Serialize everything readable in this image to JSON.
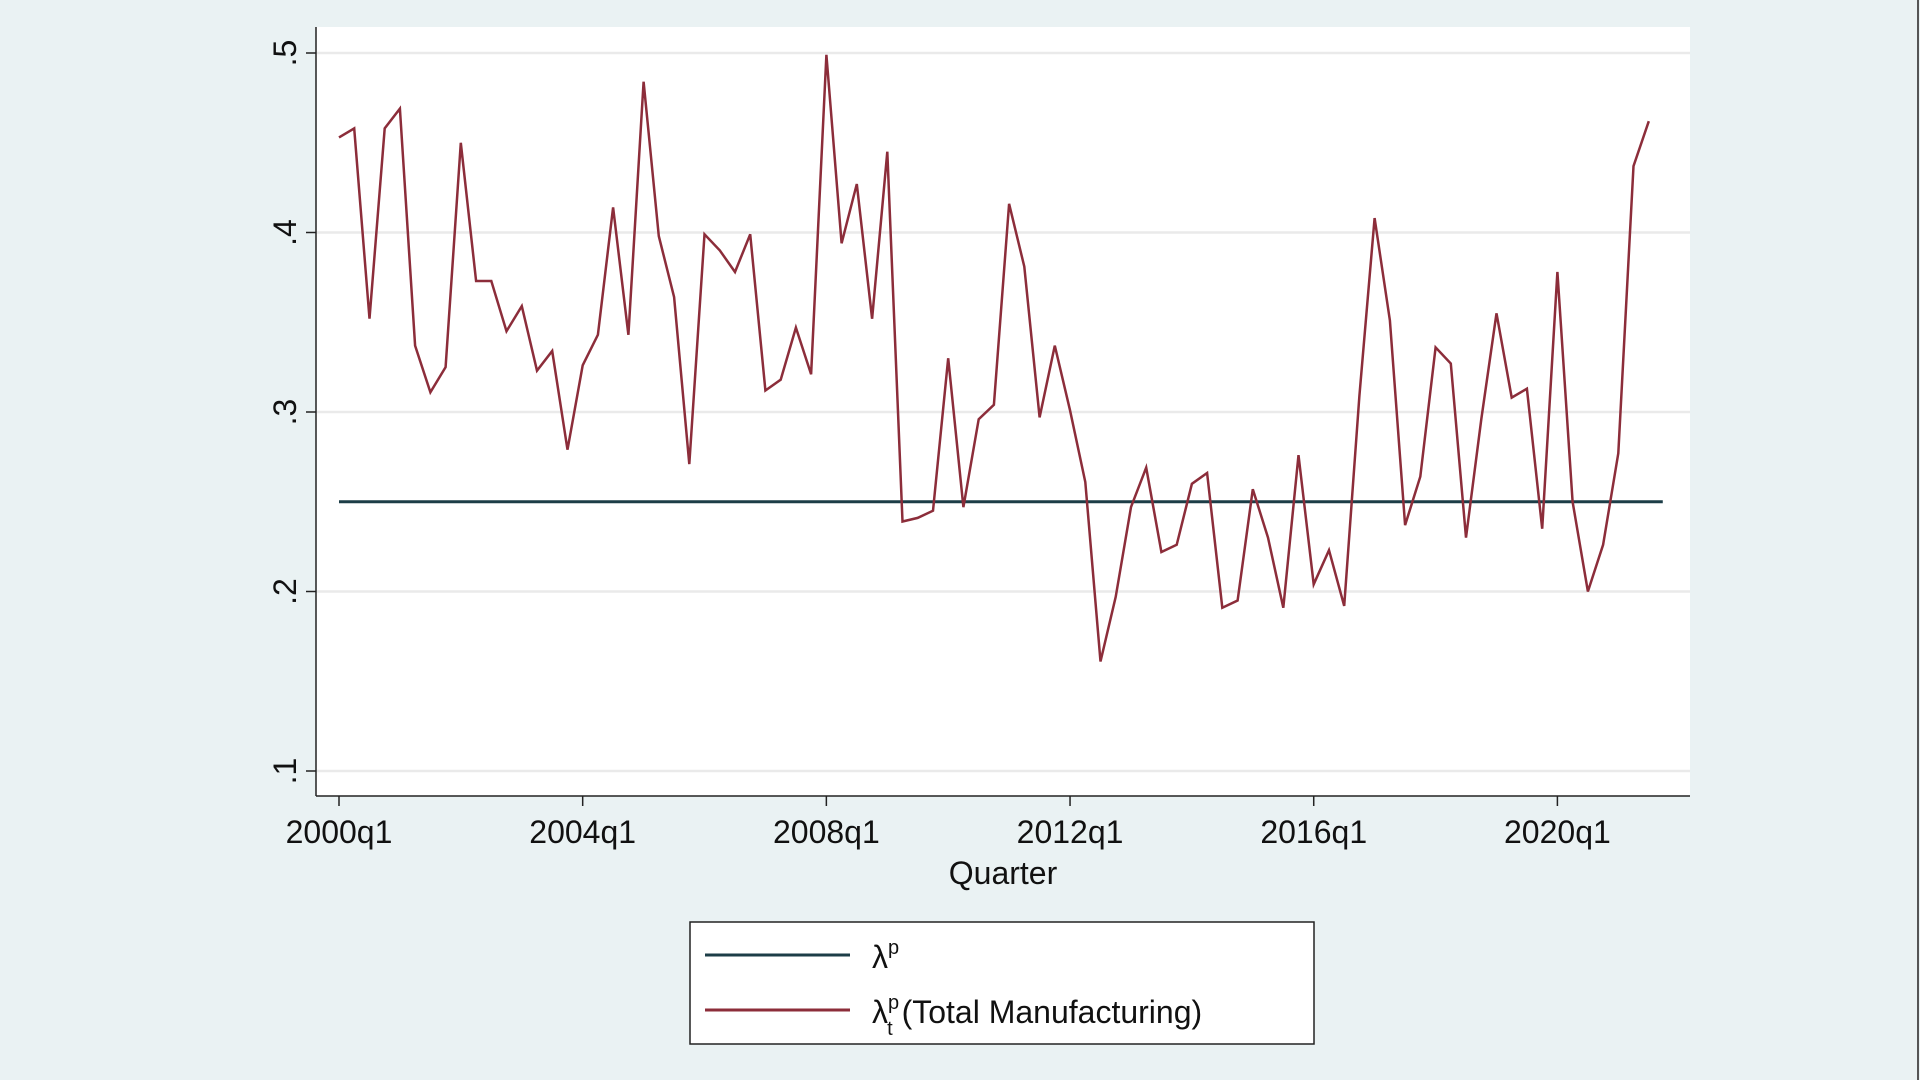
{
  "chart_data": {
    "type": "line",
    "xlabel": "Quarter",
    "ylabel": "",
    "ylim": [
      0.1,
      0.5
    ],
    "yticks": [
      0.1,
      0.2,
      0.3,
      0.4,
      0.5
    ],
    "ytick_labels": [
      ".1",
      ".2",
      ".3",
      ".4",
      ".5"
    ],
    "x_start": "2000q1",
    "x_end": "2021q3",
    "xtick_labels": [
      "2000q1",
      "2004q1",
      "2008q1",
      "2012q1",
      "2016q1",
      "2020q1"
    ],
    "grid": true,
    "legend_placement": "bottom",
    "series": [
      {
        "name": "λᵖ",
        "legend_main": "λ",
        "legend_sup": "p",
        "legend_sub": "",
        "legend_rest": "",
        "color": "#1c3d47",
        "constant": 0.25
      },
      {
        "name": "λᵖₜ (Total Manufacturing)",
        "legend_main": "λ",
        "legend_sup": "p",
        "legend_sub": "t",
        "legend_rest": " (Total Manufacturing)",
        "color": "#8c2d3a",
        "values": [
          0.453,
          0.458,
          0.352,
          0.458,
          0.469,
          0.337,
          0.311,
          0.325,
          0.45,
          0.373,
          0.373,
          0.345,
          0.359,
          0.323,
          0.334,
          0.279,
          0.326,
          0.343,
          0.414,
          0.343,
          0.484,
          0.398,
          0.364,
          0.271,
          0.399,
          0.39,
          0.378,
          0.399,
          0.312,
          0.318,
          0.347,
          0.321,
          0.499,
          0.394,
          0.427,
          0.352,
          0.445,
          0.239,
          0.241,
          0.245,
          0.33,
          0.247,
          0.296,
          0.304,
          0.416,
          0.381,
          0.297,
          0.337,
          0.301,
          0.261,
          0.161,
          0.197,
          0.247,
          0.269,
          0.222,
          0.226,
          0.26,
          0.266,
          0.191,
          0.195,
          0.257,
          0.23,
          0.191,
          0.276,
          0.204,
          0.223,
          0.192,
          0.309,
          0.408,
          0.351,
          0.237,
          0.264,
          0.336,
          0.327,
          0.23,
          0.296,
          0.355,
          0.308,
          0.313,
          0.235,
          0.378,
          0.25,
          0.2,
          0.226,
          0.277,
          0.437,
          0.462
        ]
      }
    ]
  }
}
